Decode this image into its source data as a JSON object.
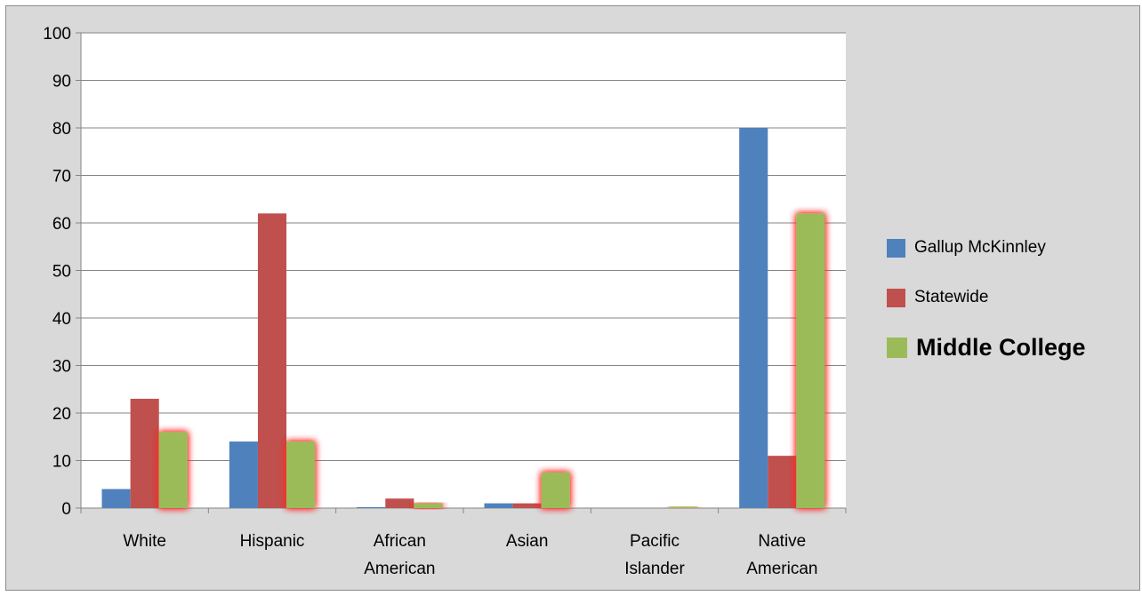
{
  "chart_data": {
    "type": "bar",
    "categories": [
      [
        "White"
      ],
      [
        "Hispanic"
      ],
      [
        "African",
        "American"
      ],
      [
        "Asian"
      ],
      [
        "Pacific",
        "Islander"
      ],
      [
        "Native",
        "American"
      ]
    ],
    "series": [
      {
        "name": "Gallup McKinnley",
        "color": "#4f81bd",
        "values": [
          4,
          14,
          0.2,
          1,
          0,
          80
        ]
      },
      {
        "name": "Statewide",
        "color": "#c0504d",
        "values": [
          23,
          62,
          2,
          1,
          0,
          11
        ]
      },
      {
        "name": "Middle College",
        "color": "#9bbb59",
        "values": [
          16,
          14,
          1,
          7.5,
          0.3,
          62
        ],
        "highlight": true
      }
    ],
    "ylim": [
      0,
      100
    ],
    "yticks": [
      0,
      10,
      20,
      30,
      40,
      50,
      60,
      70,
      80,
      90,
      100
    ],
    "grid": true,
    "legend_position": "right"
  }
}
